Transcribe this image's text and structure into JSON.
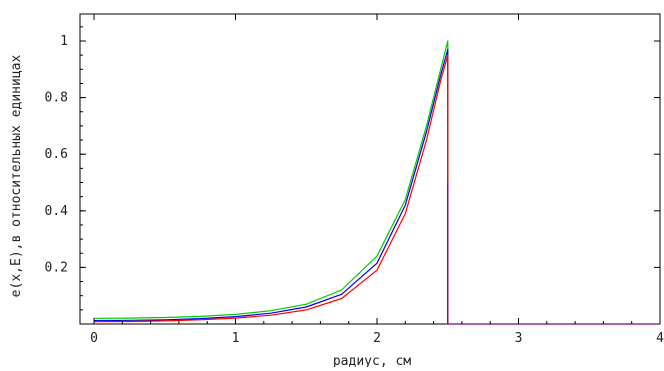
{
  "chart_data": {
    "type": "line",
    "title": "",
    "xlabel": "радиус, см",
    "ylabel": "e(x,E),в относительных единицах",
    "xlim": [
      0,
      4
    ],
    "ylim": [
      0,
      1.1
    ],
    "x_ticks": [
      0,
      1,
      2,
      3,
      4
    ],
    "x_tick_labels": [
      "0",
      "1",
      "2",
      "3",
      "4"
    ],
    "y_ticks": [
      0.2,
      0.4,
      0.6,
      0.8,
      1.0
    ],
    "y_tick_labels": [
      "0.2",
      "0.4",
      "0.6",
      "0.8",
      "1"
    ],
    "grid": false,
    "legend": "none",
    "series": [
      {
        "color": "#00cc00",
        "x": [
          0.0,
          0.25,
          0.5,
          0.75,
          1.0,
          1.25,
          1.5,
          1.75,
          2.0,
          2.2,
          2.35,
          2.45,
          2.5,
          2.5
        ],
        "y": [
          0.02,
          0.021,
          0.023,
          0.027,
          0.034,
          0.047,
          0.07,
          0.12,
          0.24,
          0.44,
          0.7,
          0.9,
          1.0,
          0.5
        ]
      },
      {
        "color": "#0000ee",
        "x": [
          0.0,
          0.25,
          0.5,
          0.75,
          1.0,
          1.25,
          1.5,
          1.75,
          2.0,
          2.2,
          2.35,
          2.45,
          2.5,
          2.5
        ],
        "y": [
          0.012,
          0.013,
          0.015,
          0.019,
          0.026,
          0.038,
          0.06,
          0.105,
          0.215,
          0.42,
          0.68,
          0.88,
          0.97,
          0.0
        ]
      },
      {
        "color": "#ff0000",
        "x": [
          0.0,
          0.25,
          0.5,
          0.75,
          1.0,
          1.25,
          1.5,
          1.75,
          2.0,
          2.2,
          2.35,
          2.45,
          2.5,
          2.5
        ],
        "y": [
          0.008,
          0.009,
          0.011,
          0.015,
          0.021,
          0.031,
          0.05,
          0.09,
          0.19,
          0.39,
          0.65,
          0.86,
          0.95,
          0.0
        ]
      },
      {
        "color": "#800080",
        "x": [
          2.5,
          2.5,
          4.0
        ],
        "y": [
          0.5,
          0.0,
          0.0
        ]
      }
    ]
  }
}
